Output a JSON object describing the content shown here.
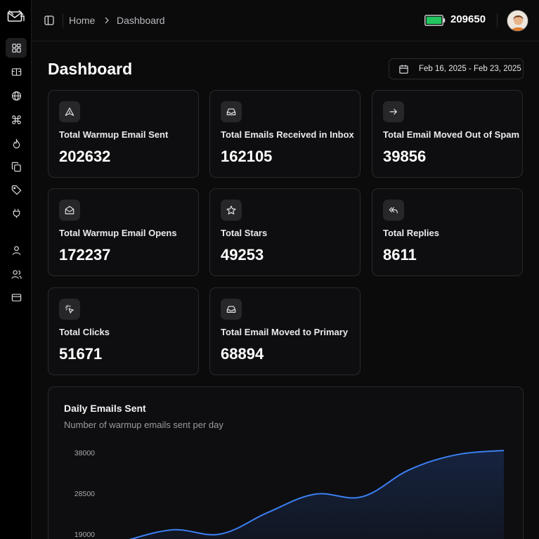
{
  "sidebar": {
    "logo": "envelope-logo",
    "items": [
      {
        "icon": "dashboard-grid-icon",
        "active": true
      },
      {
        "icon": "inbox-panel-icon"
      },
      {
        "icon": "globe-icon"
      },
      {
        "icon": "command-icon"
      },
      {
        "icon": "flame-icon"
      },
      {
        "icon": "copy-icon"
      },
      {
        "icon": "tag-icon"
      },
      {
        "icon": "plug-icon"
      },
      {
        "icon": "user-icon"
      },
      {
        "icon": "users-icon"
      },
      {
        "icon": "credit-card-icon"
      }
    ]
  },
  "header": {
    "breadcrumb": [
      "Home",
      "Dashboard"
    ],
    "credits": "209650",
    "battery_color": "#22c55e"
  },
  "main": {
    "title": "Dashboard",
    "date_range": "Feb 16, 2025 - Feb 23, 2025"
  },
  "cards": [
    {
      "label": "Total Warmup Email Sent",
      "value": "202632",
      "icon": "send-triangle-icon"
    },
    {
      "label": "Total Emails Received in Inbox",
      "value": "162105",
      "icon": "inbox-icon"
    },
    {
      "label": "Total Email Moved Out of Spam",
      "value": "39856",
      "icon": "arrow-right-icon"
    },
    {
      "label": "Total Warmup Email Opens",
      "value": "172237",
      "icon": "mail-open-icon"
    },
    {
      "label": "Total Stars",
      "value": "49253",
      "icon": "star-icon"
    },
    {
      "label": "Total Replies",
      "value": "8611",
      "icon": "reply-all-icon"
    },
    {
      "label": "Total Clicks",
      "value": "51671",
      "icon": "cursor-click-icon"
    },
    {
      "label": "Total Email Moved to Primary",
      "value": "68894",
      "icon": "inbox-icon"
    }
  ],
  "chart": {
    "title": "Daily Emails Sent",
    "subtitle": "Number of warmup emails sent per day",
    "line_color": "#3b7ff2"
  },
  "chart_data": {
    "type": "area",
    "title": "Daily Emails Sent",
    "subtitle": "Number of warmup emails sent per day",
    "ytick_labels": [
      "38000",
      "28500",
      "19000"
    ],
    "yticks": [
      38000,
      28500,
      19000
    ],
    "x": [
      1,
      2,
      3,
      4,
      5,
      6,
      7,
      8,
      9
    ],
    "values": [
      17500,
      20000,
      19000,
      24000,
      28300,
      27700,
      34000,
      37500,
      38500
    ],
    "ylim": [
      19000,
      38000
    ],
    "grid": false,
    "legend": "none"
  }
}
